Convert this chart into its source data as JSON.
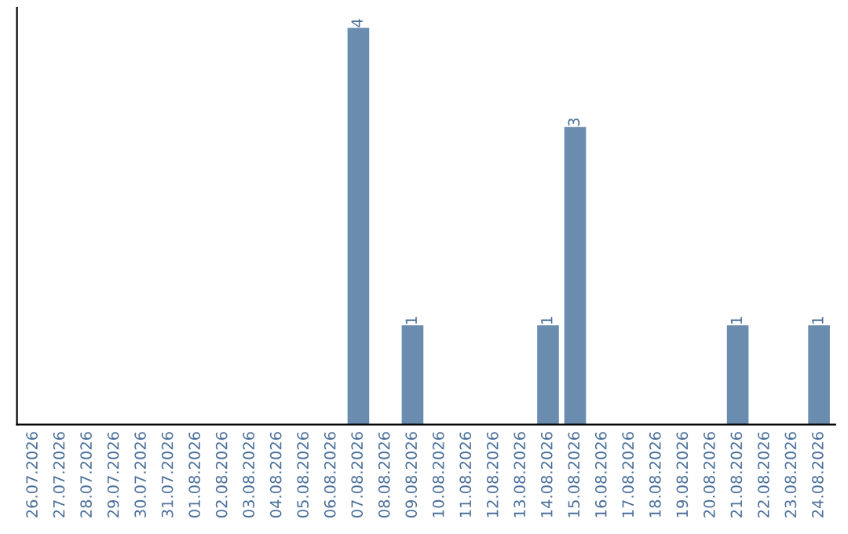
{
  "chart_data": {
    "type": "bar",
    "categories": [
      "26.07.2026",
      "27.07.2026",
      "28.07.2026",
      "29.07.2026",
      "30.07.2026",
      "31.07.2026",
      "01.08.2026",
      "02.08.2026",
      "03.08.2026",
      "04.08.2026",
      "05.08.2026",
      "06.08.2026",
      "07.08.2026",
      "08.08.2026",
      "09.08.2026",
      "10.08.2026",
      "11.08.2026",
      "12.08.2026",
      "13.08.2026",
      "14.08.2026",
      "15.08.2026",
      "16.08.2026",
      "17.08.2026",
      "18.08.2026",
      "19.08.2026",
      "20.08.2026",
      "21.08.2026",
      "22.08.2026",
      "23.08.2026",
      "24.08.2026"
    ],
    "values": [
      null,
      null,
      null,
      null,
      null,
      null,
      null,
      null,
      null,
      null,
      null,
      null,
      4,
      null,
      1,
      null,
      null,
      null,
      null,
      1,
      3,
      null,
      null,
      null,
      null,
      null,
      1,
      null,
      null,
      1
    ],
    "value_labels": [
      null,
      null,
      null,
      null,
      null,
      null,
      null,
      null,
      null,
      null,
      null,
      null,
      "4",
      null,
      "1",
      null,
      null,
      null,
      null,
      "1",
      "3",
      null,
      null,
      null,
      null,
      null,
      "1",
      null,
      null,
      "1"
    ],
    "color": "#6a8caf",
    "grid": false,
    "legend": false
  }
}
